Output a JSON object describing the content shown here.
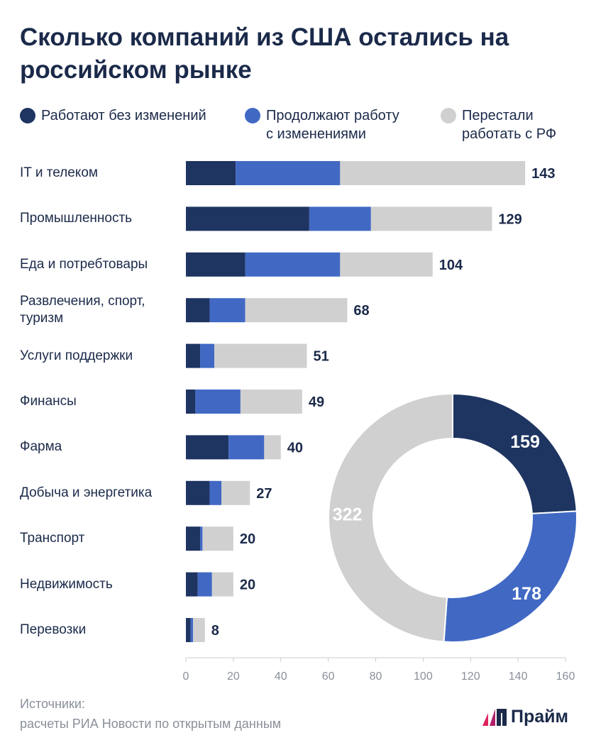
{
  "title": "Сколько компаний из США остались на российском рынке",
  "legend": [
    {
      "label": "Работают без изменений",
      "color": "#1e3461"
    },
    {
      "label": "Продолжают работу\nс изменениями",
      "color": "#4169c4"
    },
    {
      "label": "Перестали\nработать с РФ",
      "color": "#d0d0d0"
    }
  ],
  "chart_data": [
    {
      "type": "bar",
      "orientation": "horizontal",
      "stacked": true,
      "categories": [
        "IT и телеком",
        "Промышленность",
        "Еда и потребтовары",
        "Развлечения, спорт, туризм",
        "Услуги поддержки",
        "Финансы",
        "Фарма",
        "Добыча и энергетика",
        "Транспорт",
        "Недвижимость",
        "Перевозки"
      ],
      "series": [
        {
          "name": "Работают без изменений",
          "values": [
            21,
            52,
            25,
            10,
            6,
            4,
            18,
            10,
            6,
            5,
            2
          ]
        },
        {
          "name": "Продолжают работу с изменениями",
          "values": [
            44,
            26,
            40,
            15,
            6,
            19,
            15,
            5,
            1,
            6,
            1
          ]
        },
        {
          "name": "Перестали работать с РФ",
          "values": [
            78,
            51,
            39,
            43,
            39,
            26,
            7,
            12,
            13,
            9,
            5
          ]
        }
      ],
      "totals": [
        143,
        129,
        104,
        68,
        51,
        49,
        40,
        27,
        20,
        20,
        8
      ],
      "xlim": [
        0,
        160
      ],
      "xticks": [
        0,
        20,
        40,
        60,
        80,
        100,
        120,
        140,
        160
      ],
      "legend_position": "top"
    },
    {
      "type": "pie",
      "donut": true,
      "labels": [
        "Работают без изменений",
        "Продолжают работу с изменениями",
        "Перестали работать с РФ"
      ],
      "values": [
        159,
        178,
        322
      ]
    }
  ],
  "source": "Источники:\nрасчеты РИА Новости по открытым данным",
  "logo": "Прайм"
}
